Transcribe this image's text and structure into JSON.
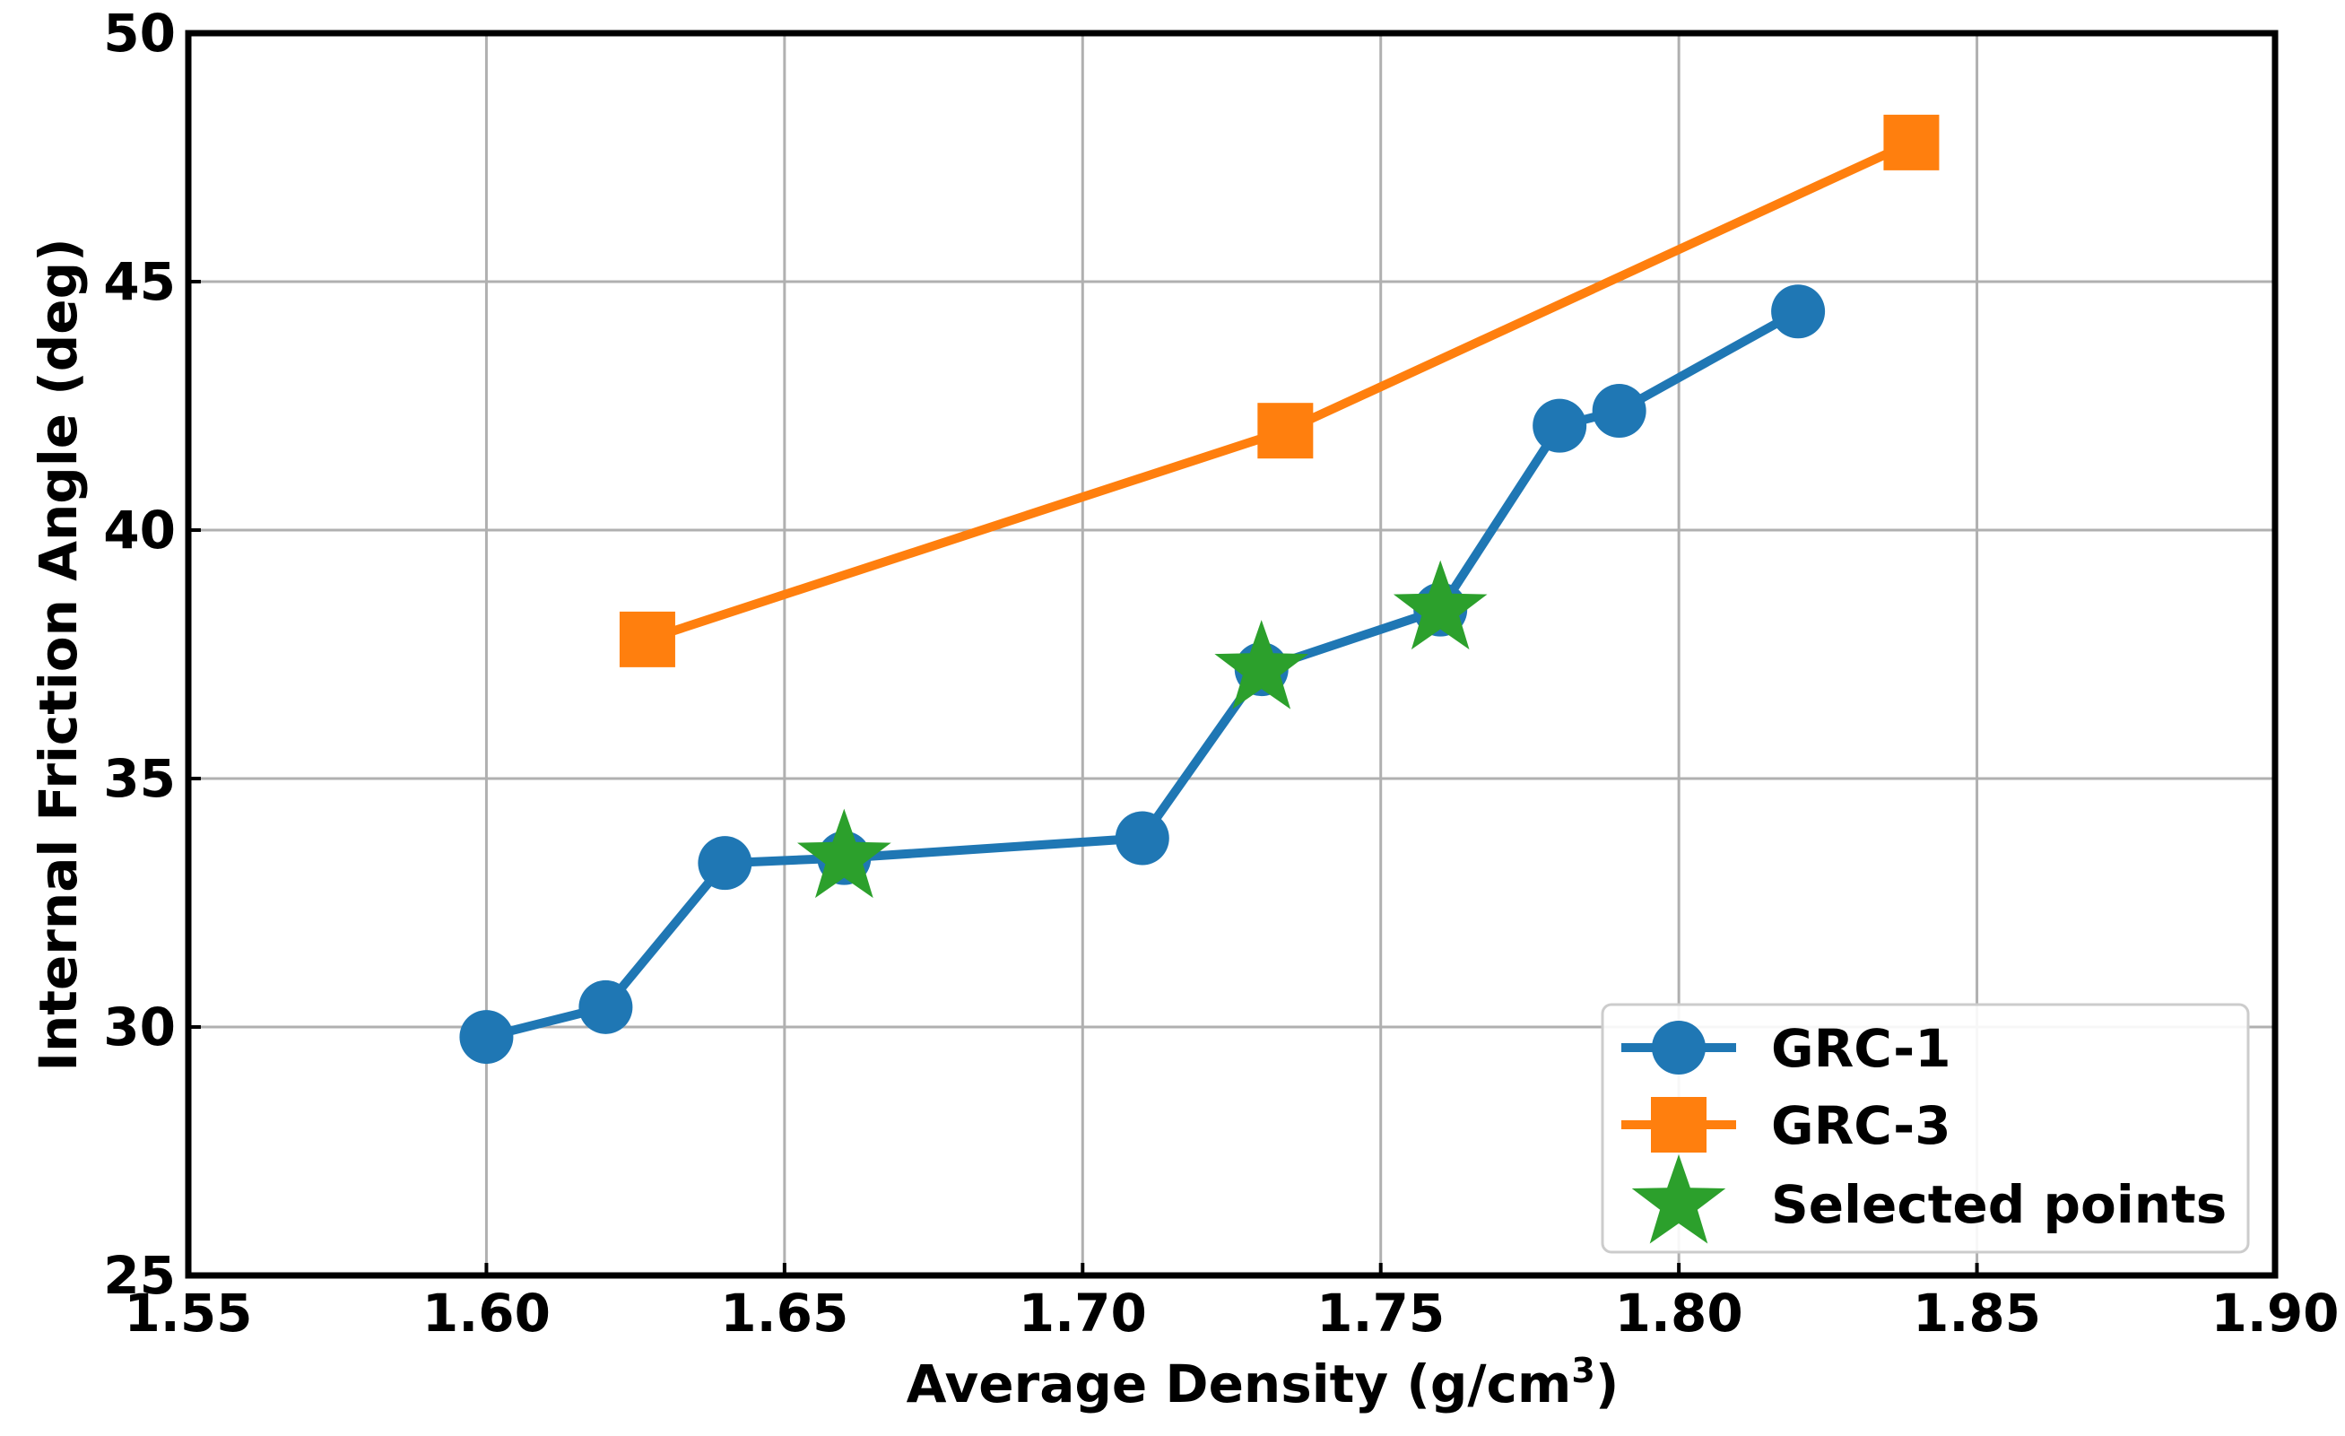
{
  "chart_data": {
    "type": "line",
    "title": "",
    "xlabel": "Average Density (g/cm",
    "xlabel_superscript": "3",
    "xlabel_suffix": ")",
    "ylabel": "Internal Friction Angle (deg)",
    "xlim": [
      1.55,
      1.9
    ],
    "ylim": [
      25,
      50
    ],
    "xticks": [
      1.55,
      1.6,
      1.65,
      1.7,
      1.75,
      1.8,
      1.85,
      1.9
    ],
    "xtick_labels": [
      "1.55",
      "1.60",
      "1.65",
      "1.70",
      "1.75",
      "1.80",
      "1.85",
      "1.90"
    ],
    "yticks": [
      25,
      30,
      35,
      40,
      45,
      50
    ],
    "ytick_labels": [
      "25",
      "30",
      "35",
      "40",
      "45",
      "50"
    ],
    "grid": true,
    "legend_position": "bottom-right",
    "series": [
      {
        "name": "GRC-1",
        "color": "#1f77b4",
        "marker": "circle",
        "line": true,
        "x": [
          1.6,
          1.62,
          1.64,
          1.66,
          1.71,
          1.73,
          1.76,
          1.78,
          1.79,
          1.82
        ],
        "y": [
          29.8,
          30.4,
          33.3,
          33.4,
          33.8,
          37.2,
          38.4,
          42.1,
          42.4,
          44.4
        ]
      },
      {
        "name": "GRC-3",
        "color": "#ff7f0e",
        "marker": "square",
        "line": true,
        "x": [
          1.627,
          1.734,
          1.839
        ],
        "y": [
          37.8,
          42.0,
          47.8
        ]
      },
      {
        "name": "Selected points",
        "color": "#2ca02c",
        "marker": "star",
        "line": false,
        "x": [
          1.66,
          1.73,
          1.76
        ],
        "y": [
          33.4,
          37.2,
          38.4
        ]
      }
    ]
  }
}
